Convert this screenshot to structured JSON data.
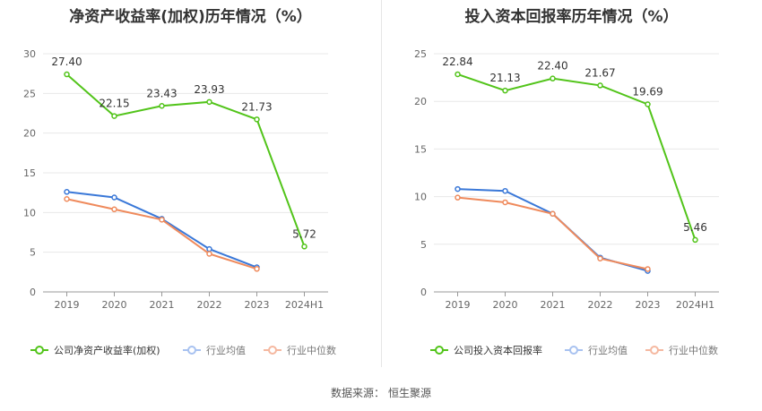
{
  "source": {
    "label": "数据来源：",
    "provider": "恒生聚源"
  },
  "chart_data": [
    {
      "type": "line",
      "title": "净资产收益率(加权)历年情况（%）",
      "categories": [
        "2019",
        "2020",
        "2021",
        "2022",
        "2023",
        "2024H1"
      ],
      "ylim": [
        0,
        30
      ],
      "yticks": [
        0,
        5,
        10,
        15,
        20,
        25,
        30
      ],
      "grid": true,
      "legend_position": "bottom-left",
      "series": [
        {
          "name": "公司净资产收益率(加权)",
          "color": "#52c41a",
          "values": [
            27.4,
            22.15,
            23.43,
            23.93,
            21.73,
            5.72
          ],
          "labels": [
            "27.40",
            "22.15",
            "23.43",
            "23.93",
            "21.73",
            "5.72"
          ]
        },
        {
          "name": "行业均值",
          "color": "#3a78d8",
          "values": [
            12.6,
            11.9,
            9.2,
            5.4,
            3.1,
            null
          ]
        },
        {
          "name": "行业中位数",
          "color": "#ef8a5c",
          "values": [
            11.7,
            10.4,
            9.1,
            4.8,
            2.9,
            null
          ]
        }
      ]
    },
    {
      "type": "line",
      "title": "投入资本回报率历年情况（%）",
      "categories": [
        "2019",
        "2020",
        "2021",
        "2022",
        "2023",
        "2024H1"
      ],
      "ylim": [
        0,
        25
      ],
      "yticks": [
        0,
        5,
        10,
        15,
        20,
        25
      ],
      "grid": true,
      "legend_position": "bottom-left",
      "series": [
        {
          "name": "公司投入资本回报率",
          "color": "#52c41a",
          "values": [
            22.84,
            21.13,
            22.4,
            21.67,
            19.69,
            5.46
          ],
          "labels": [
            "22.84",
            "21.13",
            "22.40",
            "21.67",
            "19.69",
            "5.46"
          ]
        },
        {
          "name": "行业均值",
          "color": "#3a78d8",
          "values": [
            10.8,
            10.6,
            8.2,
            3.6,
            2.2,
            null
          ]
        },
        {
          "name": "行业中位数",
          "color": "#ef8a5c",
          "values": [
            9.9,
            9.4,
            8.2,
            3.5,
            2.4,
            null
          ]
        }
      ]
    }
  ]
}
